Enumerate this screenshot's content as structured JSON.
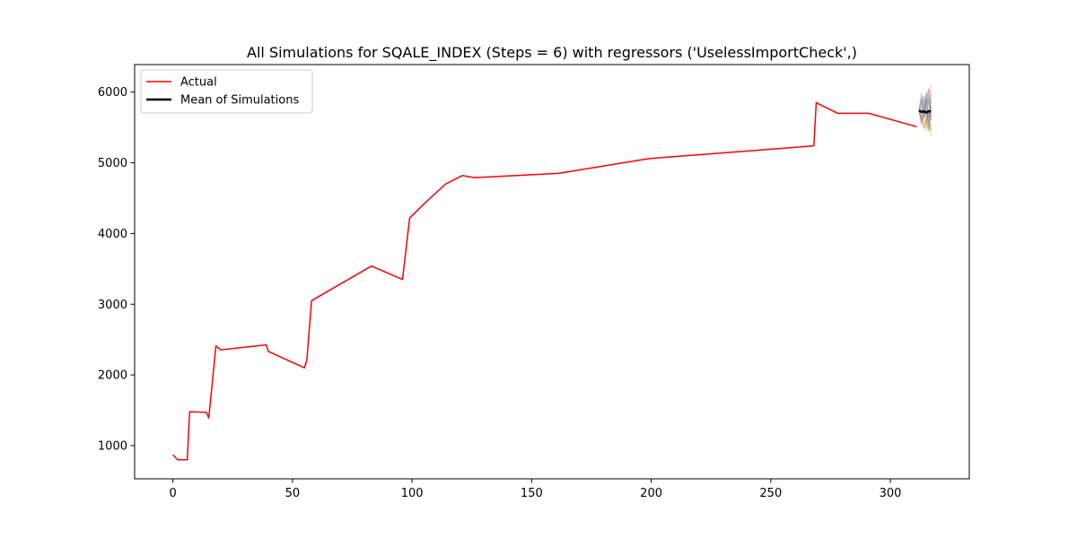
{
  "chart_data": {
    "type": "line",
    "title": "All Simulations for SQALE_INDEX (Steps = 6) with regressors ('UselessImportCheck',)",
    "xlabel": "",
    "ylabel": "",
    "xlim": [
      -16,
      333
    ],
    "ylim": [
      530,
      6390
    ],
    "xticks": [
      0,
      50,
      100,
      150,
      200,
      250,
      300
    ],
    "yticks": [
      1000,
      2000,
      3000,
      4000,
      5000,
      6000
    ],
    "grid": false,
    "legend": {
      "placement": "top-left",
      "entries": [
        {
          "label": "Actual",
          "color": "#ff0000"
        },
        {
          "label": "Mean of Simulations",
          "color": "#000000"
        }
      ]
    },
    "series": [
      {
        "name": "Actual",
        "color": "#ff0000",
        "x": [
          0,
          2,
          6,
          7,
          14,
          15,
          18,
          20,
          39,
          40,
          55,
          56,
          58,
          83,
          96,
          99,
          106,
          114,
          121,
          126,
          161,
          199,
          268,
          269,
          278,
          291,
          311
        ],
        "y": [
          870,
          800,
          800,
          1480,
          1470,
          1390,
          2410,
          2355,
          2425,
          2330,
          2100,
          2210,
          3050,
          3540,
          3350,
          4220,
          4450,
          4700,
          4820,
          4790,
          4850,
          5060,
          5240,
          5850,
          5700,
          5700,
          5510
        ]
      },
      {
        "name": "Mean of Simulations",
        "color": "#000000",
        "x": [
          312,
          313,
          314,
          315,
          316,
          317
        ],
        "y": [
          5740,
          5720,
          5730,
          5710,
          5730,
          5725
        ]
      }
    ],
    "simulations": {
      "x": [
        312,
        313,
        314,
        315,
        316,
        317
      ],
      "colors": [
        "#1f77b4",
        "#ff7f0e",
        "#2ca02c",
        "#d62728",
        "#9467bd",
        "#8c564b",
        "#e377c2",
        "#bcbd22",
        "#17becf",
        "#7f7f7f"
      ],
      "runs": [
        [
          5740,
          5900,
          5650,
          6000,
          5550,
          5800
        ],
        [
          5740,
          5600,
          5850,
          5500,
          5900,
          5650
        ],
        [
          5740,
          5800,
          5950,
          5700,
          5450,
          5900
        ],
        [
          5740,
          5550,
          5700,
          5850,
          6050,
          5600
        ],
        [
          5740,
          5980,
          5620,
          5760,
          5680,
          5980
        ],
        [
          5740,
          5650,
          5500,
          5600,
          5750,
          5450
        ],
        [
          5740,
          5850,
          5780,
          5950,
          5820,
          6100
        ],
        [
          5740,
          5700,
          5600,
          5450,
          5600,
          5380
        ],
        [
          5740,
          5620,
          5900,
          5800,
          5950,
          5700
        ],
        [
          5740,
          5760,
          5680,
          5900,
          5500,
          5550
        ]
      ]
    }
  }
}
